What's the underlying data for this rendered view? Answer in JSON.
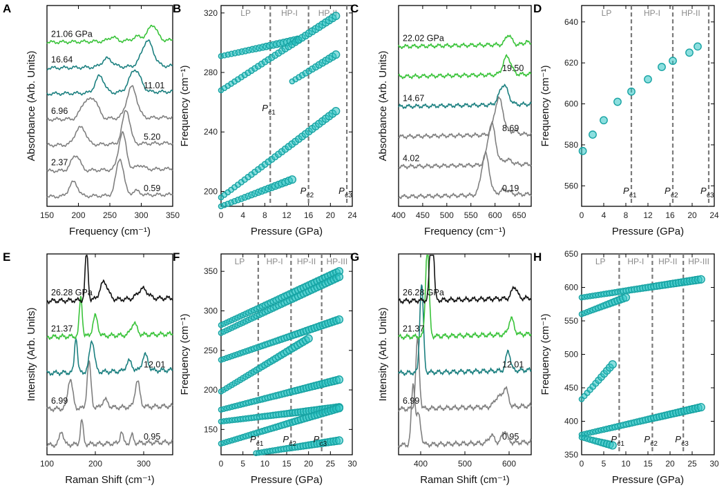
{
  "colors": {
    "gray": "#7f7f7f",
    "teal": "#1a7f7f",
    "green": "#39c339",
    "black": "#111111",
    "dot": "#2ec4c4",
    "dotEdge": "#17a3a3",
    "dash": "#7a7a7a"
  },
  "panels": [
    {
      "label": "A",
      "type": "spectra",
      "xlabel": "Frequency (cm⁻¹)",
      "ylabel": "Absorbance (Arb. Units)",
      "xticks": [
        "150",
        "200",
        "250",
        "300",
        "350"
      ],
      "xlim": [
        150,
        350
      ],
      "traces": [
        {
          "pressure": "0.59",
          "color": "gray",
          "peaks": [
            [
              190,
              0.8,
              6
            ],
            [
              197,
              0.4,
              5
            ],
            [
              266,
              2.6,
              6
            ],
            [
              292,
              0.3,
              6
            ]
          ]
        },
        {
          "pressure": "2.37",
          "color": "gray",
          "peaks": [
            [
              193,
              0.8,
              6
            ],
            [
              200,
              0.5,
              5
            ],
            [
              270,
              2.6,
              6
            ],
            [
              298,
              0.3,
              6
            ]
          ]
        },
        {
          "pressure": "5.20",
          "color": "gray",
          "peaks": [
            [
              198,
              0.8,
              6
            ],
            [
              208,
              0.9,
              6
            ],
            [
              276,
              2.4,
              6
            ]
          ]
        },
        {
          "pressure": "6.96",
          "color": "gray",
          "peaks": [
            [
              210,
              1.1,
              7
            ],
            [
              225,
              1.3,
              7
            ],
            [
              285,
              2.2,
              8
            ]
          ]
        },
        {
          "pressure": "11.01",
          "color": "teal",
          "peaks": [
            [
              234,
              1.2,
              7
            ],
            [
              290,
              1.6,
              9
            ]
          ]
        },
        {
          "pressure": "16.64",
          "color": "teal",
          "peaks": [
            [
              246,
              0.6,
              8
            ],
            [
              310,
              1.8,
              9
            ]
          ]
        },
        {
          "pressure": "21.06 GPa",
          "color": "green",
          "peaks": [
            [
              254,
              0.3,
              6
            ],
            [
              295,
              0.3,
              8
            ],
            [
              318,
              1.1,
              7
            ]
          ]
        }
      ]
    },
    {
      "label": "B",
      "type": "scatter",
      "xlabel": "Pressure (GPa)",
      "ylabel": "Frequency (cm⁻¹)",
      "xticks": [
        "0",
        "4",
        "8",
        "12",
        "16",
        "20",
        "24"
      ],
      "xlim": [
        0,
        24
      ],
      "yticks": [
        "200",
        "240",
        "280",
        "320"
      ],
      "ylim": [
        190,
        325
      ],
      "regions": [
        "LP",
        "HP-I",
        "HP-II"
      ],
      "pc_lines": [
        9,
        16,
        23
      ],
      "pc_labels": [
        "P",
        "P",
        "P"
      ],
      "pc_subs": [
        "c1",
        "c2",
        "c3"
      ],
      "series": [
        {
          "p": [
            0,
            14
          ],
          "f": [
            291,
            302
          ]
        },
        {
          "p": [
            0,
            21
          ],
          "f": [
            268,
            318
          ]
        },
        {
          "p": [
            13,
            21
          ],
          "f": [
            274,
            292
          ]
        },
        {
          "p": [
            0,
            21
          ],
          "f": [
            196,
            254
          ]
        },
        {
          "p": [
            0,
            13
          ],
          "f": [
            190,
            208
          ]
        }
      ]
    },
    {
      "label": "C",
      "type": "spectra",
      "xlabel": "Frequency (cm⁻¹)",
      "ylabel": "Absorbance (Arb. Units)",
      "xticks": [
        "400",
        "450",
        "500",
        "550",
        "600",
        "650"
      ],
      "xlim": [
        400,
        675
      ],
      "traces": [
        {
          "pressure": "0.19",
          "color": "gray",
          "peaks": [
            [
              580,
              2.5,
              8
            ],
            [
              620,
              0.3,
              10
            ]
          ]
        },
        {
          "pressure": "4.02",
          "color": "gray",
          "peaks": [
            [
              593,
              2.5,
              8
            ],
            [
              625,
              0.3,
              10
            ]
          ]
        },
        {
          "pressure": "8.69",
          "color": "gray",
          "peaks": [
            [
              608,
              2.2,
              9
            ],
            [
              640,
              0.2,
              8
            ]
          ]
        },
        {
          "pressure": "14.67",
          "color": "teal",
          "peaks": [
            [
              618,
              1.2,
              9
            ]
          ]
        },
        {
          "pressure": "19.50",
          "color": "green",
          "peaks": [
            [
              625,
              1.1,
              8
            ]
          ]
        },
        {
          "pressure": "22.02 GPa",
          "color": "green",
          "peaks": [
            [
              628,
              0.6,
              6
            ],
            [
              665,
              0.2,
              3
            ]
          ]
        }
      ]
    },
    {
      "label": "D",
      "type": "scatter",
      "xlabel": "Pressure (GPa)",
      "ylabel": "Frequency (cm⁻¹)",
      "xticks": [
        "0",
        "4",
        "8",
        "12",
        "16",
        "20",
        "24"
      ],
      "xlim": [
        0,
        24
      ],
      "yticks": [
        "560",
        "580",
        "600",
        "620",
        "640"
      ],
      "ylim": [
        550,
        648
      ],
      "regions": [
        "LP",
        "HP-I",
        "HP-II"
      ],
      "pc_lines": [
        9,
        16.5,
        23
      ],
      "pc_labels": [
        "P",
        "P",
        "P"
      ],
      "pc_subs": [
        "c1",
        "c2",
        "c3"
      ],
      "points": [
        [
          0.2,
          577
        ],
        [
          2,
          585
        ],
        [
          4,
          592
        ],
        [
          6.5,
          601
        ],
        [
          9,
          606
        ],
        [
          12,
          612
        ],
        [
          14.5,
          618
        ],
        [
          16.5,
          621
        ],
        [
          19.5,
          625
        ],
        [
          21,
          628
        ]
      ]
    },
    {
      "label": "E",
      "type": "spectra",
      "xlabel": "Raman Shift (cm⁻¹)",
      "ylabel": "Intensity (Arb. Units)",
      "xticks": [
        "100",
        "200",
        "300"
      ],
      "xlim": [
        100,
        360
      ],
      "traces": [
        {
          "pressure": "0.95",
          "color": "gray",
          "peaks": [
            [
              130,
              0.7,
              4
            ],
            [
              172,
              1.2,
              3
            ],
            [
              254,
              0.6,
              3
            ],
            [
              276,
              0.4,
              3
            ]
          ]
        },
        {
          "pressure": "6.99",
          "color": "gray",
          "peaks": [
            [
              148,
              1.5,
              5
            ],
            [
              187,
              2.3,
              4
            ],
            [
              220,
              0.4,
              6
            ],
            [
              287,
              1.3,
              5
            ]
          ]
        },
        {
          "pressure": "12.01",
          "color": "teal",
          "peaks": [
            [
              160,
              1.8,
              3
            ],
            [
              193,
              1.6,
              5
            ],
            [
              270,
              0.5,
              6
            ],
            [
              303,
              0.8,
              6
            ]
          ]
        },
        {
          "pressure": "21.37",
          "color": "green",
          "peaks": [
            [
              170,
              2.0,
              3
            ],
            [
              200,
              1.0,
              5
            ],
            [
              280,
              0.6,
              6
            ]
          ]
        },
        {
          "pressure": "26.28 GPa",
          "color": "black",
          "peaks": [
            [
              182,
              2.5,
              3
            ],
            [
              218,
              0.9,
              8
            ],
            [
              298,
              0.5,
              10
            ]
          ]
        }
      ]
    },
    {
      "label": "F",
      "type": "scatter",
      "xlabel": "Pressure (GPa)",
      "ylabel": "Frequency (cm⁻¹)",
      "xticks": [
        "0",
        "5",
        "10",
        "15",
        "20",
        "25",
        "30"
      ],
      "xlim": [
        0,
        30
      ],
      "yticks": [
        "150",
        "200",
        "250",
        "300",
        "350"
      ],
      "ylim": [
        118,
        372
      ],
      "regions": [
        "LP",
        "HP-I",
        "HP-II",
        "HP-III"
      ],
      "pc_lines": [
        8.5,
        16,
        23
      ],
      "pc_labels": [
        "P",
        "P",
        "P"
      ],
      "pc_subs": [
        "c1",
        "c2",
        "c3"
      ],
      "series": [
        {
          "p": [
            0,
            27
          ],
          "f": [
            282,
            350
          ]
        },
        {
          "p": [
            0,
            27
          ],
          "f": [
            272,
            343
          ]
        },
        {
          "p": [
            0,
            27
          ],
          "f": [
            238,
            289
          ]
        },
        {
          "p": [
            0,
            20
          ],
          "f": [
            198,
            265
          ]
        },
        {
          "p": [
            0,
            27
          ],
          "f": [
            175,
            213
          ]
        },
        {
          "p": [
            0,
            27
          ],
          "f": [
            160,
            178
          ]
        },
        {
          "p": [
            0,
            27
          ],
          "f": [
            132,
            177
          ]
        },
        {
          "p": [
            8,
            27
          ],
          "f": [
            120,
            136
          ]
        }
      ]
    },
    {
      "label": "G",
      "type": "spectra",
      "xlabel": "Raman Shift (cm⁻¹)",
      "ylabel": "Intensity (Arb. Units)",
      "xticks": [
        "400",
        "500",
        "600"
      ],
      "xlim": [
        350,
        650
      ],
      "traces": [
        {
          "pressure": "0.95",
          "color": "gray",
          "peaks": [
            [
              383,
              3.0,
              4
            ],
            [
              395,
              1.5,
              5
            ],
            [
              560,
              0.4,
              6
            ],
            [
              590,
              0.6,
              6
            ]
          ]
        },
        {
          "pressure": "6.99",
          "color": "gray",
          "peaks": [
            [
              393,
              3.5,
              4
            ],
            [
              575,
              0.5,
              8
            ],
            [
              592,
              0.9,
              6
            ]
          ]
        },
        {
          "pressure": "12.01",
          "color": "teal",
          "peaks": [
            [
              402,
              4.5,
              4
            ],
            [
              598,
              1.0,
              5
            ]
          ]
        },
        {
          "pressure": "21.37",
          "color": "green",
          "peaks": [
            [
              415,
              4.5,
              4
            ],
            [
              605,
              0.8,
              6
            ]
          ]
        },
        {
          "pressure": "26.28 GPa",
          "color": "black",
          "peaks": [
            [
              425,
              4.8,
              4
            ],
            [
              612,
              0.6,
              6
            ]
          ]
        }
      ]
    },
    {
      "label": "H",
      "type": "scatter",
      "xlabel": "Pressure (GPa)",
      "ylabel": "Frequency (cm⁻¹)",
      "xticks": [
        "0",
        "5",
        "10",
        "15",
        "20",
        "25",
        "30"
      ],
      "xlim": [
        0,
        30
      ],
      "yticks": [
        "350",
        "400",
        "450",
        "500",
        "550",
        "600",
        "650"
      ],
      "ylim": [
        350,
        650
      ],
      "regions": [
        "LP",
        "HP-I",
        "HP-II",
        "HP-III"
      ],
      "pc_lines": [
        8.5,
        16,
        23
      ],
      "pc_labels": [
        "P",
        "P",
        "P"
      ],
      "pc_subs": [
        "c1",
        "c2",
        "c3"
      ],
      "series": [
        {
          "p": [
            0,
            27
          ],
          "f": [
            585,
            612
          ]
        },
        {
          "p": [
            0,
            10
          ],
          "f": [
            560,
            585
          ]
        },
        {
          "p": [
            0,
            7
          ],
          "f": [
            433,
            485
          ]
        },
        {
          "p": [
            0,
            27
          ],
          "f": [
            380,
            421
          ]
        },
        {
          "p": [
            0,
            7
          ],
          "f": [
            376,
            364
          ]
        }
      ]
    }
  ],
  "chart_data": [
    {
      "panel": "A",
      "type": "line",
      "xlabel": "Frequency (cm-1)",
      "ylabel": "Absorbance (Arb. Units)",
      "x_range": [
        150,
        350
      ],
      "series": [
        "0.59",
        "2.37",
        "5.20",
        "6.96",
        "11.01",
        "16.64",
        "21.06 GPa"
      ]
    },
    {
      "panel": "B",
      "type": "scatter",
      "xlabel": "Pressure (GPa)",
      "ylabel": "Frequency (cm-1)",
      "x_range": [
        0,
        24
      ],
      "y_range": [
        190,
        325
      ],
      "regions": [
        "LP",
        "HP-I",
        "HP-II"
      ],
      "critical_pressures": {
        "Pc1": 9,
        "Pc2": 16,
        "Pc3": 23
      }
    },
    {
      "panel": "C",
      "type": "line",
      "xlabel": "Frequency (cm-1)",
      "ylabel": "Absorbance (Arb. Units)",
      "x_range": [
        400,
        675
      ],
      "series": [
        "0.19",
        "4.02",
        "8.69",
        "14.67",
        "19.50",
        "22.02 GPa"
      ]
    },
    {
      "panel": "D",
      "type": "scatter",
      "xlabel": "Pressure (GPa)",
      "ylabel": "Frequency (cm-1)",
      "x": [
        0.2,
        2,
        4,
        6.5,
        9,
        12,
        14.5,
        16.5,
        19.5,
        21
      ],
      "y": [
        577,
        585,
        592,
        601,
        606,
        612,
        618,
        621,
        625,
        628
      ]
    },
    {
      "panel": "E",
      "type": "line",
      "xlabel": "Raman Shift (cm-1)",
      "ylabel": "Intensity (Arb. Units)",
      "x_range": [
        100,
        360
      ],
      "series": [
        "0.95",
        "6.99",
        "12.01",
        "21.37",
        "26.28 GPa"
      ]
    },
    {
      "panel": "F",
      "type": "scatter",
      "xlabel": "Pressure (GPa)",
      "ylabel": "Frequency (cm-1)",
      "x_range": [
        0,
        30
      ],
      "y_range": [
        118,
        372
      ],
      "regions": [
        "LP",
        "HP-I",
        "HP-II",
        "HP-III"
      ]
    },
    {
      "panel": "G",
      "type": "line",
      "xlabel": "Raman Shift (cm-1)",
      "ylabel": "Intensity (Arb. Units)",
      "x_range": [
        350,
        650
      ],
      "series": [
        "0.95",
        "6.99",
        "12.01",
        "21.37",
        "26.28 GPa"
      ]
    },
    {
      "panel": "H",
      "type": "scatter",
      "xlabel": "Pressure (GPa)",
      "ylabel": "Frequency (cm-1)",
      "x_range": [
        0,
        30
      ],
      "y_range": [
        350,
        650
      ],
      "regions": [
        "LP",
        "HP-I",
        "HP-II",
        "HP-III"
      ]
    }
  ]
}
